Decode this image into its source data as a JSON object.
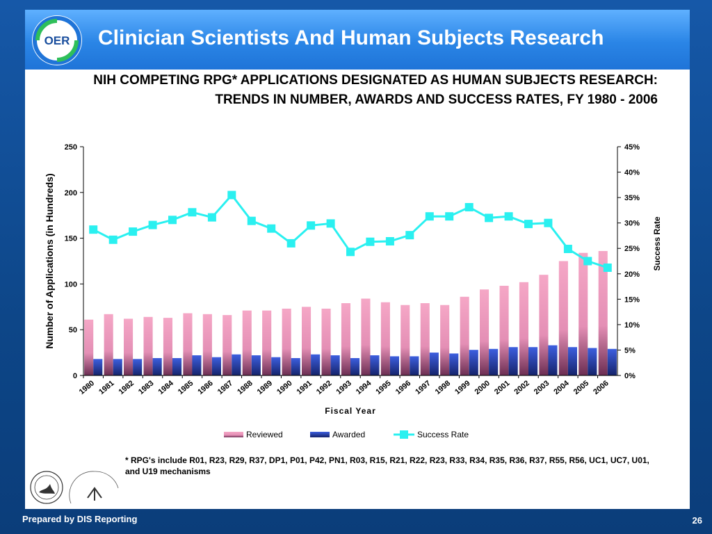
{
  "slide": {
    "title": "Clinician Scientists And Human Subjects Research",
    "logo_text": "OER",
    "footer_left": "Prepared by DIS Reporting",
    "page_number": "26",
    "footnote": "* RPG's include R01, R23, R29, R37, DP1, P01, P42, PN1, R03, R15, R21, R22, R23, R33, R34, R35, R36, R37, R55, R56, UC1, UC7, U01, and U19 mechanisms"
  },
  "colors": {
    "reviewed": "#f5a7c6",
    "awarded": "#3d5fdf",
    "success_rate": "#2af0f0"
  },
  "chart_data": {
    "type": "bar",
    "title": "NIH COMPETING RPG* APPLICATIONS DESIGNATED AS HUMAN SUBJECTS RESEARCH: TRENDS IN NUMBER, AWARDS AND SUCCESS RATES, FY 1980 - 2006",
    "xlabel": "Fiscal Year",
    "ylabel": "Number of Applications (in Hundreds)",
    "y2label": "Success Rate",
    "ylim": [
      0,
      250
    ],
    "yticks": [
      "0",
      "50",
      "100",
      "150",
      "200",
      "250"
    ],
    "y2lim": [
      0,
      45
    ],
    "y2ticks": [
      "0%",
      "5%",
      "10%",
      "15%",
      "20%",
      "25%",
      "30%",
      "35%",
      "40%",
      "45%"
    ],
    "legend_position": "bottom",
    "grid": false,
    "categories": [
      "1980",
      "1981",
      "1982",
      "1983",
      "1984",
      "1985",
      "1986",
      "1987",
      "1988",
      "1989",
      "1990",
      "1991",
      "1992",
      "1993",
      "1994",
      "1995",
      "1996",
      "1997",
      "1998",
      "1999",
      "2000",
      "2001",
      "2002",
      "2003",
      "2004",
      "2005",
      "2006"
    ],
    "series": [
      {
        "name": "Reviewed",
        "kind": "bar",
        "values": [
          61,
          67,
          62,
          64,
          63,
          68,
          67,
          66,
          71,
          71,
          73,
          75,
          73,
          79,
          84,
          80,
          77,
          79,
          77,
          86,
          94,
          98,
          102,
          110,
          125,
          134,
          136
        ]
      },
      {
        "name": "Awarded",
        "kind": "bar",
        "values": [
          18,
          18,
          18,
          19,
          19,
          22,
          20,
          23,
          22,
          20,
          19,
          23,
          22,
          19,
          22,
          21,
          21,
          25,
          24,
          28,
          29,
          31,
          31,
          33,
          31,
          30,
          29
        ]
      },
      {
        "name": "Success Rate",
        "kind": "line",
        "axis": "secondary",
        "values": [
          28.7,
          26.7,
          28.3,
          29.6,
          30.6,
          32.1,
          31.1,
          35.5,
          30.4,
          28.9,
          26.0,
          29.5,
          29.9,
          24.3,
          26.3,
          26.4,
          27.6,
          31.3,
          31.3,
          33.1,
          31.0,
          31.3,
          29.8,
          30.0,
          24.9,
          22.5,
          21.2
        ]
      }
    ]
  }
}
